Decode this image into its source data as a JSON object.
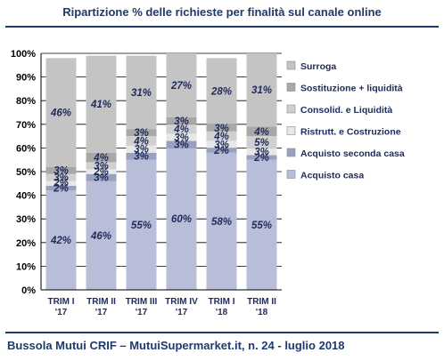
{
  "title": "Ripartizione % delle richieste per finalità sul canale online",
  "source": "Bussola Mutui CRIF – MutuiSupermarket.it, n. 24 - luglio 2018",
  "chart_data": {
    "type": "bar",
    "stacked": true,
    "categories": [
      [
        "TRIM I",
        "'17"
      ],
      [
        "TRIM II",
        "'17"
      ],
      [
        "TRIM III",
        "'17"
      ],
      [
        "TRIM IV",
        "'17"
      ],
      [
        "TRIM I",
        "'18"
      ],
      [
        "TRIM II",
        "'18"
      ]
    ],
    "y_ticks": [
      "0%",
      "10%",
      "20%",
      "30%",
      "40%",
      "50%",
      "60%",
      "70%",
      "80%",
      "90%",
      "100%"
    ],
    "ylim": [
      0,
      100
    ],
    "grid": true,
    "legend_position": "right",
    "series": [
      {
        "name": "Acquisto casa",
        "color": "#b9bed8",
        "values": [
          42,
          46,
          55,
          60,
          58,
          55
        ],
        "labels": [
          "42%",
          "46%",
          "55%",
          "60%",
          "58%",
          "55%"
        ]
      },
      {
        "name": "Acquisto seconda casa",
        "color": "#9aa0c0",
        "values": [
          2,
          3,
          3,
          3,
          2,
          2
        ],
        "labels": [
          "2%",
          "3%",
          "3%",
          "3%",
          "2%",
          "2%"
        ]
      },
      {
        "name": "Ristrutt. e Costruzione",
        "color": "#e8e8e8",
        "values": [
          2,
          2,
          3,
          3,
          3,
          3
        ],
        "labels": [
          "2%",
          "2%",
          "3%",
          "3%",
          "3%",
          "3%"
        ]
      },
      {
        "name": "Consolid. e Liquidità",
        "color": "#d0d0d0",
        "values": [
          3,
          3,
          4,
          4,
          4,
          5
        ],
        "labels": [
          "3%",
          "3%",
          "4%",
          "4%",
          "4%",
          "5%"
        ]
      },
      {
        "name": "Sostituzione + liquidità",
        "color": "#a8a8a8",
        "values": [
          3,
          4,
          3,
          3,
          3,
          4
        ],
        "labels": [
          "3%",
          "4%",
          "3%",
          "3%",
          "3%",
          "4%"
        ]
      },
      {
        "name": "Surroga",
        "color": "#c4c4c4",
        "values": [
          46,
          41,
          31,
          27,
          28,
          31
        ],
        "labels": [
          "46%",
          "41%",
          "31%",
          "27%",
          "28%",
          "31%"
        ]
      }
    ]
  }
}
